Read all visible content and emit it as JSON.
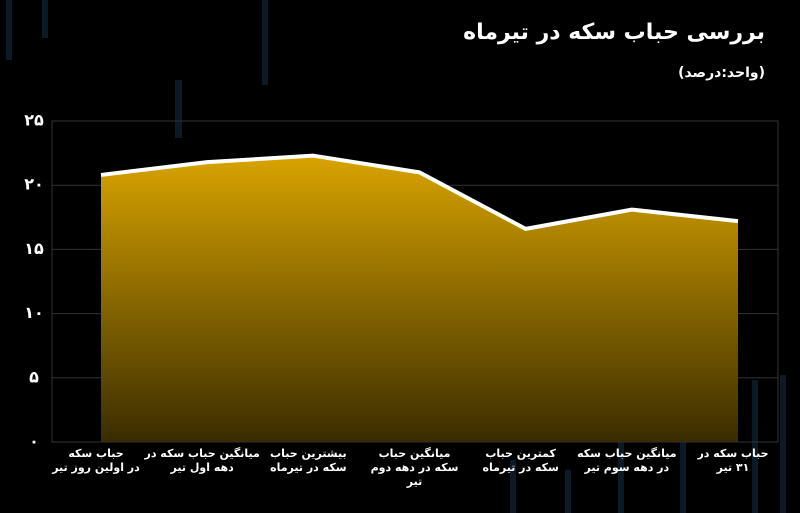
{
  "chart_data": {
    "type": "area",
    "title": "بررسی حباب سکه در  تیرماه",
    "subtitle": "(واحد:درصد)",
    "categories": [
      [
        "حباب سکه",
        "در اولین روز تیر"
      ],
      [
        "میانگین حباب سکه در",
        "دهه اول تیر"
      ],
      [
        "بیشترین حباب",
        "سکه  در تیرماه"
      ],
      [
        "میانگین حباب",
        "سکه  در دهه دوم",
        "تیر"
      ],
      [
        "کمترین حباب",
        "سکه در تیرماه"
      ],
      [
        "میانگین حباب سکه",
        "در دهه سوم تیر"
      ],
      [
        "حباب سکه در",
        "۳۱ تیر"
      ]
    ],
    "values": [
      20.8,
      21.8,
      22.3,
      21.0,
      16.6,
      18.1,
      17.2
    ],
    "color": "#d9a400",
    "line_color": "#ffffff",
    "ylim": [
      0,
      25
    ],
    "yticks": [
      {
        "value": 0,
        "label": "۰"
      },
      {
        "value": 5,
        "label": "۵"
      },
      {
        "value": 10,
        "label": "۱۰"
      },
      {
        "value": 15,
        "label": "۱۵"
      },
      {
        "value": 20,
        "label": "۲۰"
      },
      {
        "value": 25,
        "label": "۲۵"
      }
    ],
    "grid": true
  }
}
